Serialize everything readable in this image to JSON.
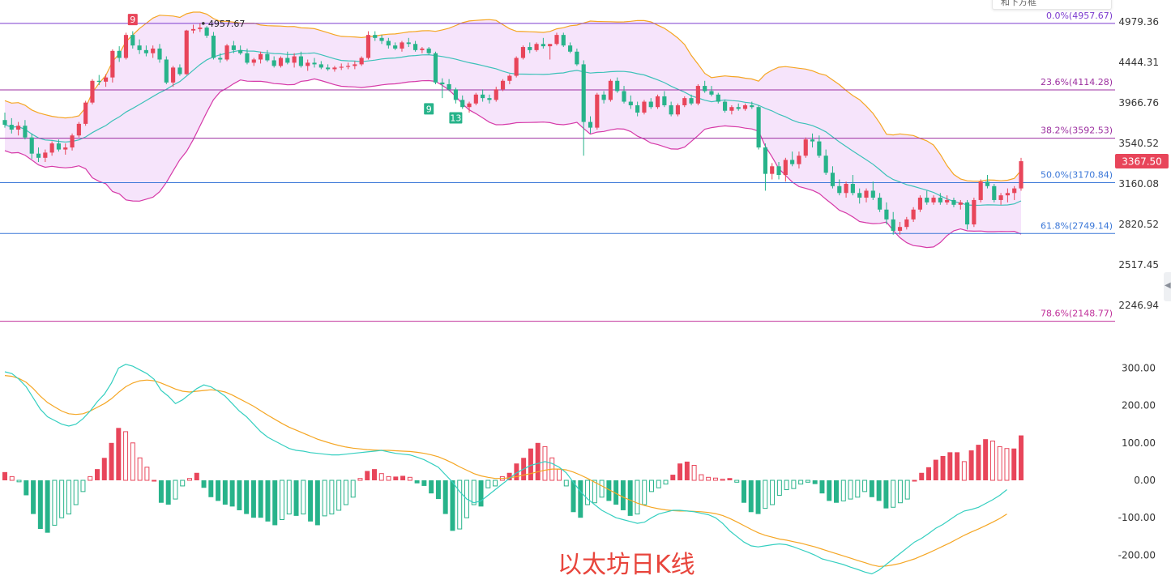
{
  "caption": "以太坊日K线",
  "tooltip_fragment": "和下方框",
  "colors": {
    "up": "#e8455a",
    "down": "#27b38a",
    "band_fill": "#f6e4fb",
    "band_upper": "#f5a623",
    "band_lower": "#d63aa8",
    "band_mid": "#3cc1b8",
    "dif": "#35cfc0",
    "dea": "#f5a623",
    "fib_0": "#7c3ccf",
    "fib_236": "#9c2fa0",
    "fib_382": "#9c2fa0",
    "fib_50": "#3c78d8",
    "fib_618": "#3c78d8",
    "fib_786": "#c0309a"
  },
  "chart_data": [
    {
      "type": "candlestick",
      "price_axis": {
        "ticks": [
          "4979.36",
          "4444.31",
          "3966.76",
          "3540.52",
          "3160.08",
          "2820.52",
          "2517.45",
          "2246.94"
        ],
        "current_price": "3367.50"
      },
      "high_annotation": "4957.67",
      "td_labels": [
        "9",
        "9",
        "13"
      ],
      "fib_levels": [
        {
          "label": "0.0%(4957.67)",
          "value": 4957.67
        },
        {
          "label": "23.6%(4114.28)",
          "value": 4114.28
        },
        {
          "label": "38.2%(3592.53)",
          "value": 3592.53
        },
        {
          "label": "50.0%(3170.84)",
          "value": 3170.84
        },
        {
          "label": "61.8%(2749.14)",
          "value": 2749.14
        },
        {
          "label": "78.6%(2148.77)",
          "value": 2148.77
        }
      ],
      "candles": [
        [
          3780,
          3860,
          3700,
          3730
        ],
        [
          3730,
          3800,
          3640,
          3680
        ],
        [
          3680,
          3760,
          3620,
          3720
        ],
        [
          3720,
          3780,
          3580,
          3600
        ],
        [
          3600,
          3640,
          3390,
          3440
        ],
        [
          3440,
          3500,
          3360,
          3400
        ],
        [
          3400,
          3480,
          3360,
          3450
        ],
        [
          3450,
          3560,
          3420,
          3540
        ],
        [
          3540,
          3580,
          3460,
          3480
        ],
        [
          3480,
          3540,
          3430,
          3500
        ],
        [
          3500,
          3640,
          3470,
          3620
        ],
        [
          3620,
          3760,
          3600,
          3740
        ],
        [
          3740,
          3990,
          3720,
          3970
        ],
        [
          3970,
          4240,
          3950,
          4220
        ],
        [
          4220,
          4290,
          4170,
          4210
        ],
        [
          4210,
          4300,
          4150,
          4260
        ],
        [
          4260,
          4610,
          4200,
          4590
        ],
        [
          4590,
          4650,
          4450,
          4500
        ],
        [
          4500,
          4830,
          4480,
          4800
        ],
        [
          4800,
          4850,
          4620,
          4660
        ],
        [
          4660,
          4740,
          4550,
          4600
        ],
        [
          4600,
          4660,
          4520,
          4560
        ],
        [
          4560,
          4660,
          4500,
          4620
        ],
        [
          4620,
          4680,
          4440,
          4480
        ],
        [
          4480,
          4520,
          4180,
          4200
        ],
        [
          4200,
          4400,
          4150,
          4380
        ],
        [
          4380,
          4420,
          4280,
          4300
        ],
        [
          4300,
          4870,
          4290,
          4860
        ],
        [
          4860,
          4940,
          4820,
          4880
        ],
        [
          4880,
          4958,
          4840,
          4900
        ],
        [
          4900,
          4920,
          4760,
          4790
        ],
        [
          4790,
          4840,
          4480,
          4500
        ],
        [
          4500,
          4560,
          4440,
          4480
        ],
        [
          4480,
          4680,
          4460,
          4660
        ],
        [
          4660,
          4720,
          4560,
          4600
        ],
        [
          4600,
          4660,
          4540,
          4560
        ],
        [
          4560,
          4620,
          4420,
          4440
        ],
        [
          4440,
          4500,
          4400,
          4480
        ],
        [
          4480,
          4580,
          4430,
          4550
        ],
        [
          4550,
          4600,
          4450,
          4470
        ],
        [
          4470,
          4520,
          4380,
          4400
        ],
        [
          4400,
          4520,
          4380,
          4500
        ],
        [
          4500,
          4580,
          4420,
          4440
        ],
        [
          4440,
          4560,
          4380,
          4520
        ],
        [
          4520,
          4580,
          4380,
          4400
        ],
        [
          4400,
          4480,
          4340,
          4440
        ],
        [
          4440,
          4500,
          4380,
          4420
        ],
        [
          4420,
          4460,
          4360,
          4380
        ],
        [
          4380,
          4420,
          4340,
          4360
        ],
        [
          4360,
          4400,
          4330,
          4380
        ],
        [
          4380,
          4430,
          4350,
          4390
        ],
        [
          4390,
          4440,
          4360,
          4400
        ],
        [
          4400,
          4460,
          4360,
          4420
        ],
        [
          4420,
          4520,
          4400,
          4500
        ],
        [
          4500,
          4850,
          4480,
          4800
        ],
        [
          4800,
          4850,
          4720,
          4760
        ],
        [
          4760,
          4800,
          4680,
          4720
        ],
        [
          4720,
          4760,
          4620,
          4660
        ],
        [
          4660,
          4700,
          4600,
          4620
        ],
        [
          4620,
          4720,
          4580,
          4700
        ],
        [
          4700,
          4760,
          4640,
          4680
        ],
        [
          4680,
          4720,
          4580,
          4600
        ],
        [
          4600,
          4640,
          4560,
          4620
        ],
        [
          4620,
          4640,
          4540,
          4560
        ],
        [
          4560,
          4580,
          4180,
          4200
        ],
        [
          4200,
          4250,
          4020,
          4180
        ],
        [
          4180,
          4240,
          4100,
          4120
        ],
        [
          4120,
          4140,
          3960,
          4000
        ],
        [
          4000,
          4050,
          3900,
          3920
        ],
        [
          3920,
          3980,
          3860,
          3960
        ],
        [
          3960,
          4080,
          3940,
          4060
        ],
        [
          4060,
          4120,
          3980,
          4020
        ],
        [
          4020,
          4060,
          3960,
          4000
        ],
        [
          4000,
          4150,
          3980,
          4120
        ],
        [
          4120,
          4240,
          4100,
          4220
        ],
        [
          4220,
          4300,
          4180,
          4280
        ],
        [
          4280,
          4520,
          4260,
          4500
        ],
        [
          4500,
          4660,
          4480,
          4640
        ],
        [
          4640,
          4700,
          4560,
          4600
        ],
        [
          4600,
          4700,
          4580,
          4680
        ],
        [
          4680,
          4760,
          4620,
          4650
        ],
        [
          4650,
          4680,
          4480,
          4680
        ],
        [
          4680,
          4830,
          4660,
          4800
        ],
        [
          4800,
          4830,
          4640,
          4660
        ],
        [
          4660,
          4700,
          4560,
          4580
        ],
        [
          4580,
          4620,
          4400,
          4420
        ],
        [
          4420,
          4470,
          3420,
          3760
        ],
        [
          3760,
          3820,
          3640,
          3700
        ],
        [
          3700,
          4080,
          3680,
          4060
        ],
        [
          4060,
          4100,
          3960,
          4000
        ],
        [
          4000,
          4240,
          3980,
          4220
        ],
        [
          4220,
          4260,
          4080,
          4100
        ],
        [
          4100,
          4160,
          3960,
          3980
        ],
        [
          3980,
          4050,
          3900,
          3940
        ],
        [
          3940,
          3980,
          3820,
          3860
        ],
        [
          3860,
          4000,
          3840,
          3980
        ],
        [
          3980,
          4020,
          3900,
          3920
        ],
        [
          3920,
          4060,
          3900,
          4040
        ],
        [
          4040,
          4100,
          3920,
          3940
        ],
        [
          3940,
          3980,
          3820,
          3840
        ],
        [
          3840,
          3960,
          3820,
          3940
        ],
        [
          3940,
          4040,
          3920,
          4020
        ],
        [
          4020,
          4060,
          3940,
          3960
        ],
        [
          3960,
          4180,
          3940,
          4160
        ],
        [
          4160,
          4220,
          4080,
          4100
        ],
        [
          4100,
          4160,
          4040,
          4060
        ],
        [
          4060,
          4080,
          3960,
          3980
        ],
        [
          3980,
          4000,
          3860,
          3880
        ],
        [
          3880,
          3940,
          3840,
          3920
        ],
        [
          3920,
          3960,
          3880,
          3900
        ],
        [
          3900,
          3960,
          3880,
          3940
        ],
        [
          3940,
          3980,
          3900,
          3920
        ],
        [
          3920,
          3940,
          3480,
          3500
        ],
        [
          3500,
          3540,
          3100,
          3250
        ],
        [
          3250,
          3350,
          3200,
          3320
        ],
        [
          3320,
          3360,
          3200,
          3240
        ],
        [
          3240,
          3400,
          3180,
          3380
        ],
        [
          3380,
          3460,
          3320,
          3340
        ],
        [
          3340,
          3460,
          3300,
          3420
        ],
        [
          3420,
          3600,
          3400,
          3580
        ],
        [
          3580,
          3640,
          3500,
          3560
        ],
        [
          3560,
          3620,
          3400,
          3420
        ],
        [
          3420,
          3480,
          3240,
          3260
        ],
        [
          3260,
          3320,
          3120,
          3140
        ],
        [
          3140,
          3200,
          3060,
          3080
        ],
        [
          3080,
          3180,
          3040,
          3160
        ],
        [
          3160,
          3240,
          3060,
          3080
        ],
        [
          3080,
          3120,
          2990,
          3040
        ],
        [
          3040,
          3120,
          3000,
          3100
        ],
        [
          3100,
          3180,
          3020,
          3040
        ],
        [
          3040,
          3080,
          2920,
          2940
        ],
        [
          2940,
          3000,
          2820,
          2860
        ],
        [
          2860,
          2920,
          2740,
          2770
        ],
        [
          2770,
          2840,
          2740,
          2800
        ],
        [
          2800,
          2880,
          2780,
          2860
        ],
        [
          2860,
          2960,
          2840,
          2940
        ],
        [
          2940,
          3060,
          2920,
          3040
        ],
        [
          3040,
          3100,
          2980,
          3000
        ],
        [
          3000,
          3060,
          2980,
          3040
        ],
        [
          3040,
          3080,
          2980,
          3000
        ],
        [
          3000,
          3060,
          2980,
          3020
        ],
        [
          3020,
          3040,
          2960,
          2980
        ],
        [
          2980,
          3020,
          2940,
          3000
        ],
        [
          3000,
          3020,
          2780,
          2820
        ],
        [
          2820,
          3040,
          2800,
          3020
        ],
        [
          3020,
          3200,
          3000,
          3180
        ],
        [
          3180,
          3240,
          3120,
          3140
        ],
        [
          3140,
          3160,
          3000,
          3020
        ],
        [
          3020,
          3080,
          2980,
          3060
        ],
        [
          3060,
          3120,
          3000,
          3080
        ],
        [
          3080,
          3140,
          3020,
          3120
        ],
        [
          3120,
          3400,
          3100,
          3367.5
        ]
      ]
    },
    {
      "type": "macd",
      "axis_ticks": [
        "300.00",
        "200.00",
        "100.00",
        "0.00",
        "-100.00",
        "-200.00"
      ],
      "histogram": [
        22,
        10,
        -4,
        -40,
        -90,
        -130,
        -140,
        -120,
        -100,
        -90,
        -65,
        -30,
        10,
        30,
        60,
        100,
        140,
        130,
        100,
        60,
        35,
        0,
        -60,
        -65,
        -50,
        -15,
        5,
        20,
        -20,
        -45,
        -55,
        -65,
        -70,
        -80,
        -90,
        -100,
        -100,
        -110,
        -120,
        -105,
        -90,
        -95,
        -90,
        -110,
        -120,
        -95,
        -90,
        -80,
        -65,
        -45,
        5,
        25,
        30,
        18,
        10,
        10,
        12,
        8,
        -8,
        -15,
        -35,
        -50,
        -90,
        -135,
        -130,
        -100,
        -65,
        -70,
        -20,
        -15,
        10,
        20,
        45,
        60,
        85,
        100,
        90,
        60,
        30,
        -15,
        -85,
        -100,
        -65,
        -60,
        -45,
        -55,
        -65,
        -80,
        -95,
        -90,
        -65,
        -30,
        -20,
        -10,
        15,
        45,
        50,
        40,
        15,
        8,
        6,
        3,
        6,
        -5,
        -60,
        -85,
        -90,
        -75,
        -65,
        -40,
        -25,
        -22,
        -10,
        -5,
        -10,
        -35,
        -55,
        -60,
        -55,
        -50,
        -45,
        -30,
        -45,
        -55,
        -75,
        -72,
        -60,
        -50,
        0,
        20,
        35,
        55,
        65,
        75,
        75,
        50,
        80,
        95,
        110,
        105,
        90,
        85,
        85,
        120
      ],
      "dif": [
        290,
        285,
        270,
        250,
        220,
        190,
        170,
        160,
        150,
        145,
        150,
        165,
        185,
        210,
        230,
        260,
        300,
        310,
        305,
        295,
        285,
        270,
        240,
        225,
        205,
        215,
        230,
        245,
        255,
        250,
        238,
        225,
        205,
        185,
        170,
        150,
        130,
        115,
        105,
        95,
        85,
        80,
        78,
        74,
        72,
        70,
        68,
        68,
        70,
        72,
        74,
        76,
        78,
        80,
        76,
        72,
        70,
        68,
        62,
        55,
        45,
        35,
        15,
        -5,
        -30,
        -50,
        -60,
        -55,
        -40,
        -25,
        -10,
        5,
        20,
        30,
        40,
        45,
        50,
        45,
        35,
        20,
        -5,
        -30,
        -50,
        -65,
        -80,
        -90,
        -100,
        -105,
        -110,
        -115,
        -112,
        -100,
        -90,
        -85,
        -80,
        -80,
        -82,
        -84,
        -88,
        -92,
        -100,
        -115,
        -135,
        -150,
        -165,
        -175,
        -178,
        -175,
        -172,
        -170,
        -172,
        -178,
        -185,
        -192,
        -200,
        -210,
        -215,
        -220,
        -225,
        -232,
        -238,
        -245,
        -250,
        -240,
        -225,
        -210,
        -195,
        -180,
        -165,
        -155,
        -142,
        -128,
        -118,
        -105,
        -92,
        -82,
        -78,
        -72,
        -62,
        -52,
        -40,
        -25
      ],
      "dea": [
        280,
        278,
        272,
        262,
        245,
        225,
        208,
        196,
        185,
        178,
        176,
        178,
        185,
        195,
        205,
        218,
        235,
        250,
        260,
        266,
        268,
        266,
        260,
        252,
        244,
        238,
        236,
        238,
        240,
        242,
        240,
        236,
        228,
        218,
        208,
        198,
        186,
        174,
        163,
        152,
        142,
        134,
        126,
        118,
        110,
        104,
        98,
        93,
        89,
        86,
        84,
        82,
        81,
        80,
        80,
        79,
        78,
        77,
        75,
        72,
        68,
        63,
        55,
        46,
        36,
        27,
        18,
        12,
        8,
        5,
        5,
        7,
        10,
        14,
        18,
        23,
        27,
        30,
        30,
        28,
        22,
        14,
        5,
        -5,
        -15,
        -25,
        -35,
        -45,
        -53,
        -61,
        -67,
        -72,
        -76,
        -79,
        -81,
        -82,
        -82,
        -83,
        -84,
        -86,
        -89,
        -94,
        -102,
        -111,
        -121,
        -131,
        -140,
        -147,
        -152,
        -157,
        -160,
        -164,
        -168,
        -173,
        -178,
        -184,
        -190,
        -196,
        -202,
        -208,
        -214,
        -220,
        -226,
        -230,
        -229,
        -226,
        -222,
        -216,
        -210,
        -202,
        -194,
        -185,
        -176,
        -167,
        -157,
        -147,
        -138,
        -130,
        -121,
        -112,
        -102,
        -90
      ]
    }
  ]
}
